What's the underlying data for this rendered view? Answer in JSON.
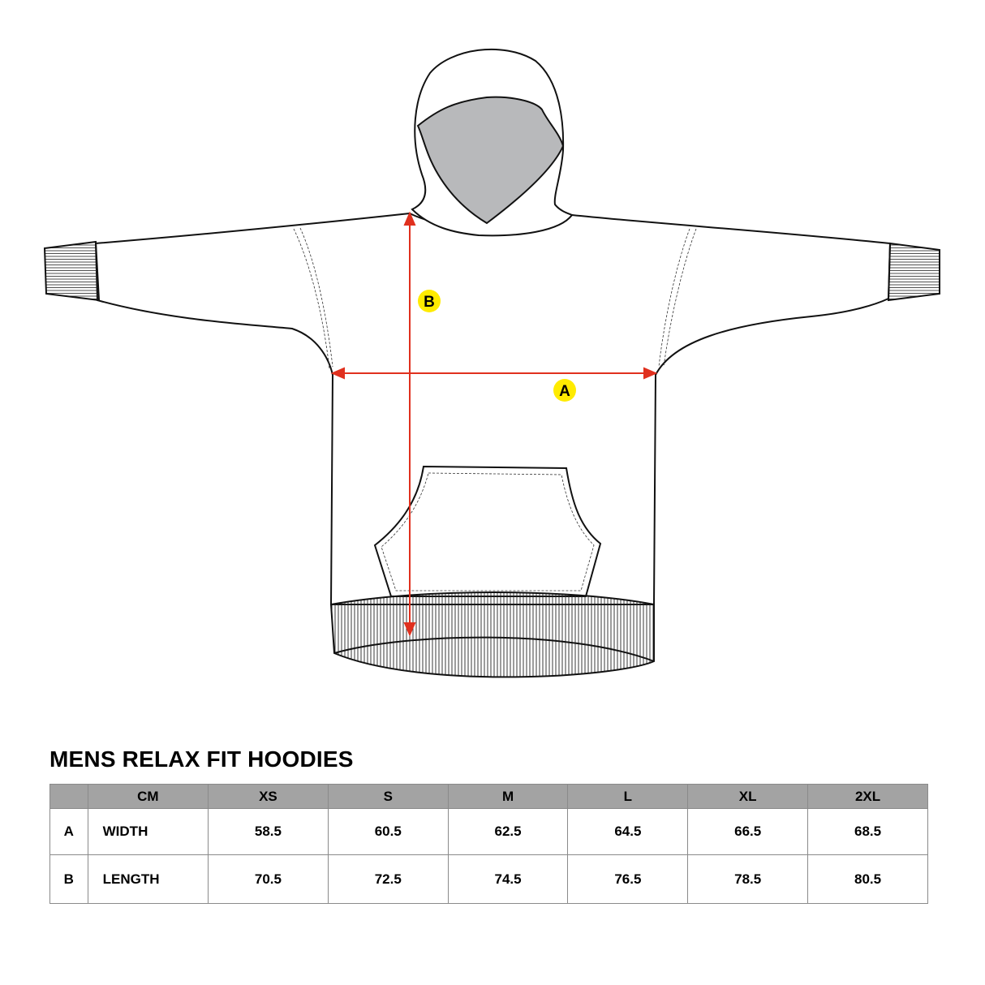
{
  "title": "MENS RELAX FIT HOODIES",
  "diagram": {
    "markers": [
      {
        "label": "A",
        "meaning": "WIDTH"
      },
      {
        "label": "B",
        "meaning": "LENGTH"
      }
    ],
    "colors": {
      "arrow": "#e0301e",
      "marker_fill": "#ffeb00",
      "hood_lining": "#b8b9bb"
    }
  },
  "table": {
    "headers": [
      "",
      "CM",
      "XS",
      "S",
      "M",
      "L",
      "XL",
      "2XL"
    ],
    "rows": [
      {
        "key": "A",
        "name": "WIDTH",
        "values": [
          "58.5",
          "60.5",
          "62.5",
          "64.5",
          "66.5",
          "68.5"
        ]
      },
      {
        "key": "B",
        "name": "LENGTH",
        "values": [
          "70.5",
          "72.5",
          "74.5",
          "76.5",
          "78.5",
          "80.5"
        ]
      }
    ]
  }
}
